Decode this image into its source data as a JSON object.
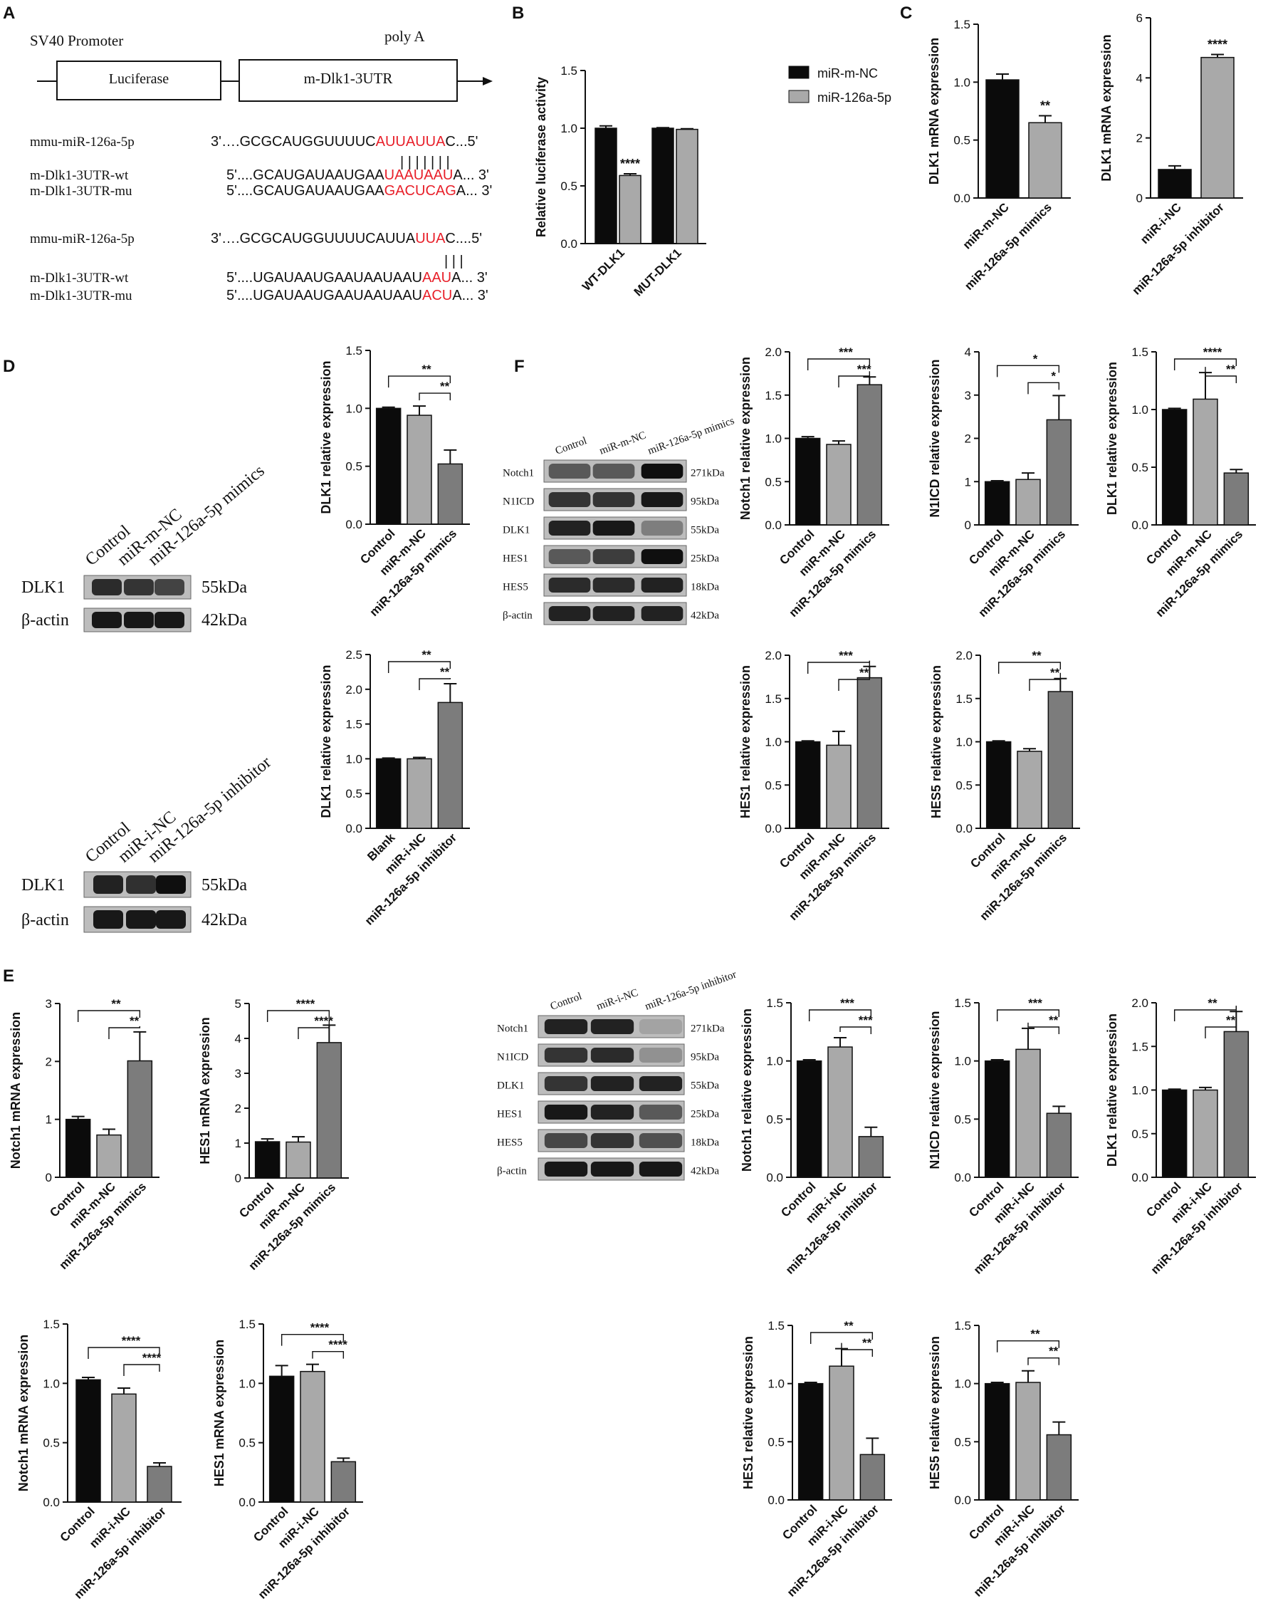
{
  "colors": {
    "black": "#0b0b0b",
    "light_gray": "#a9a9a9",
    "mid_gray": "#7c7c7c",
    "red": "#e8202a"
  },
  "panel_letters": [
    "A",
    "B",
    "C",
    "D",
    "E",
    "F"
  ],
  "panelA": {
    "promoter": "SV40 Promoter",
    "polyA": "poly A",
    "box1": "Luciferase",
    "box2": "m-Dlk1-3UTR",
    "rows": [
      {
        "label": "mmu-miR-126a-5p",
        "parts": [
          "3'….GCGCAUGGUUUUC",
          "AUUAUUA",
          "C...5'"
        ]
      },
      {
        "label": "m-Dlk1-3UTR-wt",
        "parts": [
          "5'....GCAUGAUAAUGAA",
          "UAAUAAU",
          "A... 3'"
        ]
      },
      {
        "label": "m-Dlk1-3UTR-mu",
        "parts": [
          "5'....GCAUGAUAAUGAA",
          "GACUCAG",
          "A... 3'"
        ]
      },
      {
        "label": "mmu-miR-126a-5p",
        "parts": [
          "3'….GCGCAUGGUUUUCAUUA",
          "UUA",
          "C....5'"
        ]
      },
      {
        "label": "m-Dlk1-3UTR-wt",
        "parts": [
          "5'....UGAUAAUGAAUAAUAAU",
          "AAU",
          "A... 3'"
        ]
      },
      {
        "label": "m-Dlk1-3UTR-mu",
        "parts": [
          "5'....UGAUAAUGAAUAAUAAU",
          "ACU",
          "A... 3'"
        ]
      }
    ],
    "pair_marks_1": "| | | | | | |",
    "pair_marks_2": "| | |"
  },
  "blots": {
    "D_top": {
      "lanes": [
        "Control",
        "miR-m-NC",
        "miR-126a-5p mimics"
      ],
      "bands": [
        {
          "label": "DLK1",
          "kda": "55kDa"
        },
        {
          "label": "β-actin",
          "kda": "42kDa"
        }
      ]
    },
    "D_bottom": {
      "lanes": [
        "Control",
        "miR-i-NC",
        "miR-126a-5p inhibitor"
      ],
      "bands": [
        {
          "label": "DLK1",
          "kda": "55kDa"
        },
        {
          "label": "β-actin",
          "kda": "42kDa"
        }
      ]
    },
    "F_top": {
      "lanes": [
        "Control",
        "miR-m-NC",
        "miR-126a-5p mimics"
      ],
      "bands": [
        {
          "label": "Notch1",
          "kda": "271kDa"
        },
        {
          "label": "N1ICD",
          "kda": "95kDa"
        },
        {
          "label": "DLK1",
          "kda": "55kDa"
        },
        {
          "label": "HES1",
          "kda": "25kDa"
        },
        {
          "label": "HES5",
          "kda": "18kDa"
        },
        {
          "label": "β-actin",
          "kda": "42kDa"
        }
      ]
    },
    "F_bottom": {
      "lanes": [
        "Control",
        "miR-i-NC",
        "miR-126a-5p inhibitor"
      ],
      "bands": [
        {
          "label": "Notch1",
          "kda": "271kDa"
        },
        {
          "label": "N1ICD",
          "kda": "95kDa"
        },
        {
          "label": "DLK1",
          "kda": "55kDa"
        },
        {
          "label": "HES1",
          "kda": "25kDa"
        },
        {
          "label": "HES5",
          "kda": "18kDa"
        },
        {
          "label": "β-actin",
          "kda": "42kDa"
        }
      ]
    }
  },
  "chart_data": [
    {
      "id": "B",
      "type": "bar",
      "categories": [
        "WT-DLK1",
        "MUT-DLK1"
      ],
      "ylabel": "Relative luciferase activity",
      "ylim": [
        0,
        1.5
      ],
      "yticks": [
        "0.0",
        "0.5",
        "1.0",
        "1.5"
      ],
      "series": [
        {
          "name": "miR-m-NC",
          "values": [
            1.0,
            1.0
          ],
          "err": [
            0.02,
            0.005
          ]
        },
        {
          "name": "miR-126a-5p",
          "values": [
            0.59,
            0.99
          ],
          "err": [
            0.015,
            0.005
          ]
        }
      ],
      "annotations": [
        {
          "text": "****",
          "bar": [
            0,
            1
          ]
        }
      ],
      "legend": "right"
    },
    {
      "id": "C1",
      "type": "bar",
      "categories": [
        "miR-m-NC",
        "miR-126a-5p mimics"
      ],
      "values": [
        1.02,
        0.65
      ],
      "err": [
        0.05,
        0.06
      ],
      "ylabel": "DLK1 mRNA expression",
      "ylim": [
        0,
        1.5
      ],
      "yticks": [
        "0.0",
        "0.5",
        "1.0",
        "1.5"
      ],
      "bar_colors": [
        "black",
        "light_gray"
      ],
      "annotations": [
        {
          "text": "**",
          "over": 1
        }
      ]
    },
    {
      "id": "C2",
      "type": "bar",
      "categories": [
        "miR-i-NC",
        "miR-126a-5p inhibitor"
      ],
      "values": [
        0.95,
        4.68
      ],
      "err": [
        0.12,
        0.1
      ],
      "ylabel": "DLK1 mRNA expression",
      "ylim": [
        0,
        6
      ],
      "yticks": [
        "0",
        "2",
        "4",
        "6"
      ],
      "bar_colors": [
        "black",
        "light_gray"
      ],
      "annotations": [
        {
          "text": "****",
          "over": 1
        }
      ]
    },
    {
      "id": "D1",
      "type": "bar",
      "categories": [
        "Control",
        "miR-m-NC",
        "miR-126a-5p mimics"
      ],
      "values": [
        1.0,
        0.94,
        0.52
      ],
      "err": [
        0.01,
        0.08,
        0.12
      ],
      "ylabel": "DLK1 relative expression",
      "ylim": [
        0,
        1.5
      ],
      "yticks": [
        "0.0",
        "0.5",
        "1.0",
        "1.5"
      ],
      "annotations": [
        {
          "text": "**",
          "from": 0,
          "to": 2
        },
        {
          "text": "**",
          "from": 1,
          "to": 2
        }
      ]
    },
    {
      "id": "D2",
      "type": "bar",
      "categories": [
        "Blank",
        "miR-i-NC",
        "miR-126a-5p inhibitor"
      ],
      "values": [
        1.0,
        1.0,
        1.81
      ],
      "err": [
        0.01,
        0.02,
        0.27
      ],
      "ylabel": "DLK1 relative expression",
      "ylim": [
        0,
        2.5
      ],
      "yticks": [
        "0.0",
        "0.5",
        "1.0",
        "1.5",
        "2.0",
        "2.5"
      ],
      "annotations": [
        {
          "text": "**",
          "from": 0,
          "to": 2
        },
        {
          "text": "**",
          "from": 1,
          "to": 2
        }
      ]
    },
    {
      "id": "E1",
      "type": "bar",
      "categories": [
        "Control",
        "miR-m-NC",
        "miR-126a-5p mimics"
      ],
      "values": [
        1.0,
        0.73,
        2.01
      ],
      "err": [
        0.05,
        0.1,
        0.5
      ],
      "ylabel": "Notch1 mRNA expression",
      "ylim": [
        0,
        3
      ],
      "yticks": [
        "0",
        "1",
        "2",
        "3"
      ],
      "annotations": [
        {
          "text": "**",
          "from": 0,
          "to": 2
        },
        {
          "text": "**",
          "from": 1,
          "to": 2
        }
      ]
    },
    {
      "id": "E2",
      "type": "bar",
      "categories": [
        "Control",
        "miR-m-NC",
        "miR-126a-5p mimics"
      ],
      "values": [
        1.04,
        1.03,
        3.88
      ],
      "err": [
        0.08,
        0.15,
        0.5
      ],
      "ylabel": "HES1 mRNA expression",
      "ylim": [
        0,
        5
      ],
      "yticks": [
        "0",
        "1",
        "2",
        "3",
        "4",
        "5"
      ],
      "annotations": [
        {
          "text": "****",
          "from": 0,
          "to": 2
        },
        {
          "text": "****",
          "from": 1,
          "to": 2
        }
      ]
    },
    {
      "id": "E3",
      "type": "bar",
      "categories": [
        "Control",
        "miR-i-NC",
        "miR-126a-5p inhibitor"
      ],
      "values": [
        1.03,
        0.91,
        0.3
      ],
      "err": [
        0.02,
        0.05,
        0.03
      ],
      "ylabel": "Notch1 mRNA expression",
      "ylim": [
        0,
        1.5
      ],
      "yticks": [
        "0.0",
        "0.5",
        "1.0",
        "1.5"
      ],
      "annotations": [
        {
          "text": "****",
          "from": 0,
          "to": 2
        },
        {
          "text": "****",
          "from": 1,
          "to": 2
        }
      ]
    },
    {
      "id": "E4",
      "type": "bar",
      "categories": [
        "Control",
        "miR-i-NC",
        "miR-126a-5p inhibitor"
      ],
      "values": [
        1.06,
        1.1,
        0.34
      ],
      "err": [
        0.09,
        0.06,
        0.03
      ],
      "ylabel": "HES1 mRNA expression",
      "ylim": [
        0,
        1.5
      ],
      "yticks": [
        "0.0",
        "0.5",
        "1.0",
        "1.5"
      ],
      "annotations": [
        {
          "text": "****",
          "from": 0,
          "to": 2
        },
        {
          "text": "****",
          "from": 1,
          "to": 2
        }
      ]
    },
    {
      "id": "F1",
      "type": "bar",
      "categories": [
        "Control",
        "miR-m-NC",
        "miR-126a-5p mimics"
      ],
      "values": [
        1.0,
        0.93,
        1.62
      ],
      "err": [
        0.02,
        0.04,
        0.09
      ],
      "ylabel": "Notch1 relative expression",
      "ylim": [
        0,
        2.0
      ],
      "yticks": [
        "0.0",
        "0.5",
        "1.0",
        "1.5",
        "2.0"
      ],
      "annotations": [
        {
          "text": "***",
          "from": 0,
          "to": 2
        },
        {
          "text": "***",
          "from": 1,
          "to": 2
        }
      ]
    },
    {
      "id": "F2",
      "type": "bar",
      "categories": [
        "Control",
        "miR-m-NC",
        "miR-126a-5p mimics"
      ],
      "values": [
        1.0,
        1.05,
        2.43
      ],
      "err": [
        0.02,
        0.15,
        0.56
      ],
      "ylabel": "N1ICD relative expression",
      "ylim": [
        0,
        4
      ],
      "yticks": [
        "0",
        "1",
        "2",
        "3",
        "4"
      ],
      "annotations": [
        {
          "text": "*",
          "from": 0,
          "to": 2
        },
        {
          "text": "*",
          "from": 1,
          "to": 2
        }
      ]
    },
    {
      "id": "F3",
      "type": "bar",
      "categories": [
        "Control",
        "miR-m-NC",
        "miR-126a-5p mimics"
      ],
      "values": [
        1.0,
        1.09,
        0.45
      ],
      "err": [
        0.01,
        0.23,
        0.03
      ],
      "ylabel": "DLK1 relative expression",
      "ylim": [
        0,
        1.5
      ],
      "yticks": [
        "0.0",
        "0.5",
        "1.0",
        "1.5"
      ],
      "annotations": [
        {
          "text": "****",
          "from": 0,
          "to": 2
        },
        {
          "text": "**",
          "from": 1,
          "to": 2
        }
      ]
    },
    {
      "id": "F4",
      "type": "bar",
      "categories": [
        "Control",
        "miR-m-NC",
        "miR-126a-5p mimics"
      ],
      "values": [
        1.0,
        0.96,
        1.74
      ],
      "err": [
        0.01,
        0.16,
        0.13
      ],
      "ylabel": "HES1 relative expression",
      "ylim": [
        0,
        2.0
      ],
      "yticks": [
        "0.0",
        "0.5",
        "1.0",
        "1.5",
        "2.0"
      ],
      "annotations": [
        {
          "text": "***",
          "from": 0,
          "to": 2
        },
        {
          "text": "**",
          "from": 1,
          "to": 2
        }
      ]
    },
    {
      "id": "F5",
      "type": "bar",
      "categories": [
        "Control",
        "miR-m-NC",
        "miR-126a-5p mimics"
      ],
      "values": [
        1.0,
        0.89,
        1.58
      ],
      "err": [
        0.01,
        0.03,
        0.15
      ],
      "ylabel": "HES5 relative expression",
      "ylim": [
        0,
        2.0
      ],
      "yticks": [
        "0.0",
        "0.5",
        "1.0",
        "1.5",
        "2.0"
      ],
      "annotations": [
        {
          "text": "**",
          "from": 0,
          "to": 2
        },
        {
          "text": "**",
          "from": 1,
          "to": 2
        }
      ]
    },
    {
      "id": "F6",
      "type": "bar",
      "categories": [
        "Control",
        "miR-i-NC",
        "miR-126a-5p inhibitor"
      ],
      "values": [
        1.0,
        1.12,
        0.35
      ],
      "err": [
        0.01,
        0.08,
        0.08
      ],
      "ylabel": "Notch1 relative expression",
      "ylim": [
        0,
        1.5
      ],
      "yticks": [
        "0.0",
        "0.5",
        "1.0",
        "1.5"
      ],
      "annotations": [
        {
          "text": "***",
          "from": 0,
          "to": 2
        },
        {
          "text": "***",
          "from": 1,
          "to": 2
        }
      ]
    },
    {
      "id": "F7",
      "type": "bar",
      "categories": [
        "Control",
        "miR-i-NC",
        "miR-126a-5p inhibitor"
      ],
      "values": [
        1.0,
        1.1,
        0.55
      ],
      "err": [
        0.01,
        0.18,
        0.06
      ],
      "ylabel": "N1ICD relative expression",
      "ylim": [
        0,
        1.5
      ],
      "yticks": [
        "0.0",
        "0.5",
        "1.0",
        "1.5"
      ],
      "annotations": [
        {
          "text": "***",
          "from": 0,
          "to": 2
        },
        {
          "text": "**",
          "from": 1,
          "to": 2
        }
      ]
    },
    {
      "id": "F8",
      "type": "bar",
      "categories": [
        "Control",
        "miR-i-NC",
        "miR-126a-5p inhibitor"
      ],
      "values": [
        1.0,
        1.0,
        1.67
      ],
      "err": [
        0.01,
        0.03,
        0.23
      ],
      "ylabel": "DLK1 relative expression",
      "ylim": [
        0,
        2.0
      ],
      "yticks": [
        "0.0",
        "0.5",
        "1.0",
        "1.5",
        "2.0"
      ],
      "annotations": [
        {
          "text": "**",
          "from": 0,
          "to": 2
        },
        {
          "text": "**",
          "from": 1,
          "to": 2
        }
      ]
    },
    {
      "id": "F9",
      "type": "bar",
      "categories": [
        "Control",
        "miR-i-NC",
        "miR-126a-5p inhibitor"
      ],
      "values": [
        1.0,
        1.15,
        0.39
      ],
      "err": [
        0.01,
        0.15,
        0.14
      ],
      "ylabel": "HES1 relative expression",
      "ylim": [
        0,
        1.5
      ],
      "yticks": [
        "0.0",
        "0.5",
        "1.0",
        "1.5"
      ],
      "annotations": [
        {
          "text": "**",
          "from": 0,
          "to": 2
        },
        {
          "text": "**",
          "from": 1,
          "to": 2
        }
      ]
    },
    {
      "id": "F10",
      "type": "bar",
      "categories": [
        "Control",
        "miR-i-NC",
        "miR-126a-5p inhibitor"
      ],
      "values": [
        1.0,
        1.01,
        0.56
      ],
      "err": [
        0.01,
        0.1,
        0.11
      ],
      "ylabel": "HES5 relative expression",
      "ylim": [
        0,
        1.5
      ],
      "yticks": [
        "0.0",
        "0.5",
        "1.0",
        "1.5"
      ],
      "annotations": [
        {
          "text": "**",
          "from": 0,
          "to": 2
        },
        {
          "text": "**",
          "from": 1,
          "to": 2
        }
      ]
    }
  ]
}
